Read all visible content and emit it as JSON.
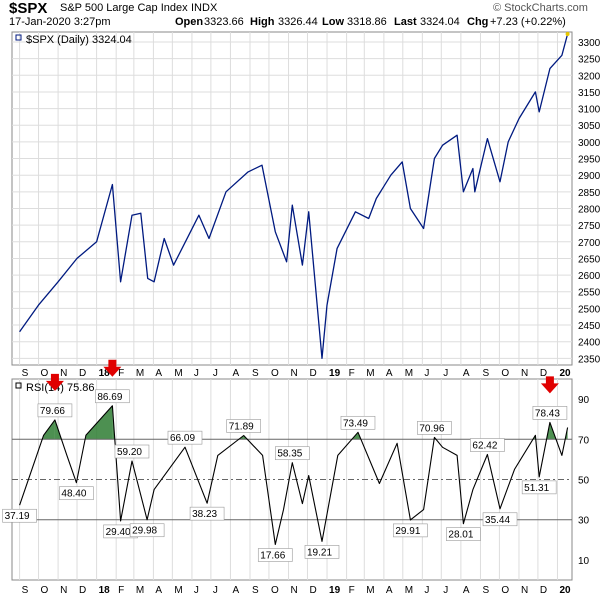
{
  "header": {
    "symbol": "$SPX",
    "name": "S&P 500 Large Cap Index",
    "exchange": "INDX",
    "date": "17-Jan-2020 3:27pm",
    "open_label": "Open",
    "open": "3323.66",
    "high_label": "High",
    "high": "3326.44",
    "low_label": "Low",
    "low": "3318.86",
    "last_label": "Last",
    "last": "3324.04",
    "chg_label": "Chg",
    "chg": "+7.23 (+0.22%)",
    "brand": "© StockCharts.com"
  },
  "colors": {
    "price_line": "#001a80",
    "rsi_line": "#000000",
    "overbought_fill": "#2e7d32",
    "arrow": "#e00000",
    "grid": "#dddddd"
  },
  "chart_data": [
    {
      "type": "line",
      "legend": "$SPX (Daily) 3324.04",
      "x_ticks": [
        "S",
        "O",
        "N",
        "D",
        "18",
        "F",
        "M",
        "A",
        "M",
        "J",
        "J",
        "A",
        "S",
        "O",
        "N",
        "D",
        "19",
        "F",
        "M",
        "A",
        "M",
        "J",
        "J",
        "A",
        "S",
        "O",
        "N",
        "D",
        "20"
      ],
      "y_ticks": [
        2350,
        2400,
        2450,
        2500,
        2550,
        2600,
        2650,
        2700,
        2750,
        2800,
        2850,
        2900,
        2950,
        3000,
        3050,
        3100,
        3150,
        3200,
        3250,
        3300
      ],
      "ylim": [
        2330,
        3330
      ],
      "series": [
        {
          "x": [
            "2017-09-01",
            "2017-10-01",
            "2017-11-01",
            "2017-12-01",
            "2018-01-01",
            "2018-01-26",
            "2018-02-08",
            "2018-02-26",
            "2018-03-12",
            "2018-03-23",
            "2018-04-02",
            "2018-04-18",
            "2018-05-03",
            "2018-06-12",
            "2018-06-28",
            "2018-07-25",
            "2018-08-29",
            "2018-09-20",
            "2018-10-11",
            "2018-10-29",
            "2018-11-07",
            "2018-11-23",
            "2018-12-03",
            "2018-12-24",
            "2019-01-01",
            "2019-01-17",
            "2019-02-15",
            "2019-03-08",
            "2019-03-20",
            "2019-04-12",
            "2019-04-30",
            "2019-05-13",
            "2019-06-03",
            "2019-06-20",
            "2019-07-03",
            "2019-07-26",
            "2019-08-05",
            "2019-08-20",
            "2019-08-23",
            "2019-09-12",
            "2019-10-02",
            "2019-10-15",
            "2019-11-01",
            "2019-11-27",
            "2019-12-03",
            "2019-12-20",
            "2020-01-08",
            "2020-01-17"
          ],
          "values": [
            2430,
            2510,
            2580,
            2650,
            2700,
            2872,
            2580,
            2780,
            2786,
            2590,
            2580,
            2710,
            2630,
            2780,
            2710,
            2850,
            2910,
            2930,
            2730,
            2640,
            2810,
            2630,
            2790,
            2350,
            2510,
            2680,
            2790,
            2770,
            2830,
            2900,
            2940,
            2800,
            2740,
            2950,
            2990,
            3020,
            2850,
            2920,
            2850,
            3010,
            2880,
            3000,
            3070,
            3150,
            3090,
            3220,
            3260,
            3324
          ]
        }
      ]
    },
    {
      "type": "line",
      "legend": "RSI(14) 75.86",
      "x_ticks": [
        "S",
        "O",
        "N",
        "D",
        "18",
        "F",
        "M",
        "A",
        "M",
        "J",
        "J",
        "A",
        "S",
        "O",
        "N",
        "D",
        "19",
        "F",
        "M",
        "A",
        "M",
        "J",
        "J",
        "A",
        "S",
        "O",
        "N",
        "D",
        "20"
      ],
      "y_ticks": [
        10,
        30,
        50,
        70,
        90
      ],
      "ylim": [
        0,
        100
      ],
      "reference_lines": [
        30,
        50,
        70
      ],
      "annotations": [
        "37.19",
        "79.66",
        "48.40",
        "86.69",
        "29.40",
        "59.20",
        "29.98",
        "66.09",
        "38.23",
        "71.89",
        "17.66",
        "58.35",
        "19.21",
        "73.49",
        "29.91",
        "70.96",
        "28.01",
        "62.42",
        "35.44",
        "51.31",
        "78.43"
      ],
      "series": [
        {
          "x": [
            "2017-09-01",
            "2017-10-09",
            "2017-10-27",
            "2017-11-15",
            "2017-11-30",
            "2017-12-15",
            "2018-01-26",
            "2018-02-08",
            "2018-02-26",
            "2018-03-22",
            "2018-04-02",
            "2018-05-21",
            "2018-06-25",
            "2018-07-12",
            "2018-08-22",
            "2018-09-21",
            "2018-10-11",
            "2018-10-24",
            "2018-11-07",
            "2018-11-23",
            "2018-12-03",
            "2018-12-24",
            "2019-01-18",
            "2019-02-19",
            "2019-03-25",
            "2019-04-22",
            "2019-05-13",
            "2019-06-03",
            "2019-06-20",
            "2019-07-03",
            "2019-07-26",
            "2019-08-05",
            "2019-08-20",
            "2019-09-12",
            "2019-10-02",
            "2019-10-25",
            "2019-11-27",
            "2019-12-03",
            "2019-12-20",
            "2020-01-08",
            "2020-01-17"
          ],
          "values": [
            37.19,
            72,
            79.66,
            62,
            48.4,
            72,
            86.69,
            29.4,
            59.2,
            29.98,
            45,
            66.09,
            38.23,
            62,
            71.89,
            62,
            17.66,
            35,
            58.35,
            38,
            52,
            19.21,
            62,
            73.49,
            48,
            68,
            29.91,
            35,
            70.96,
            66,
            62,
            28.01,
            45,
            62.42,
            35.44,
            55,
            72,
            51.31,
            78.43,
            62,
            75.86
          ]
        }
      ]
    }
  ]
}
